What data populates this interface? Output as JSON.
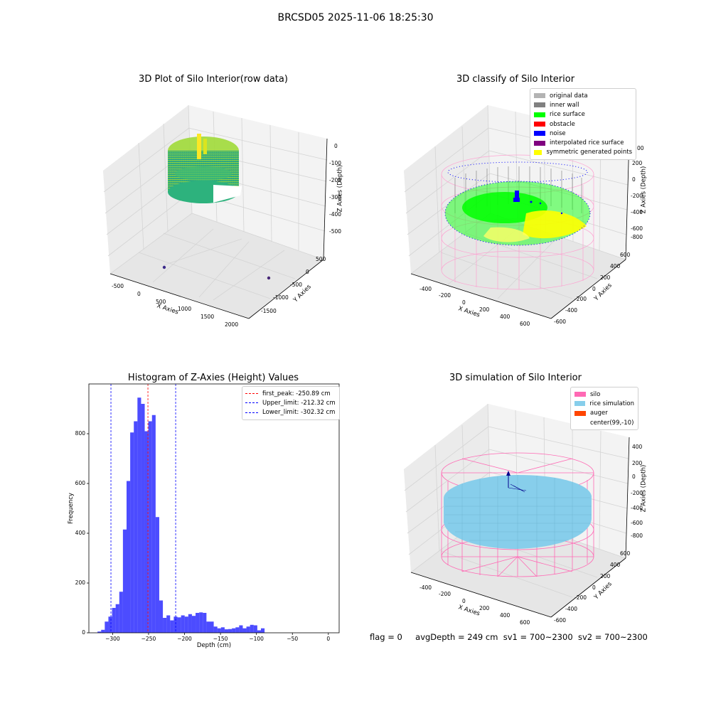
{
  "figure_title": "BRCSD05 2025-11-06 18:25:30",
  "panels": {
    "raw": {
      "title": "3D Plot of Silo Interior(row data)",
      "xlabel": "X Axies",
      "ylabel": "Y Axies",
      "zlabel": "Z Axies (Depth)",
      "xticks": [
        "-500",
        "0",
        "500",
        "1000",
        "1500",
        "2000"
      ],
      "yticks": [
        "500",
        "0",
        "-500",
        "-1000",
        "-1500"
      ],
      "zticks": [
        "0",
        "-100",
        "-200",
        "-300",
        "-400",
        "-500"
      ]
    },
    "classify": {
      "title": "3D classify of Silo Interior",
      "xlabel": "X Axies",
      "ylabel": "Y Axies",
      "zlabel": "Z Axies (Depth)",
      "xticks": [
        "-400",
        "-200",
        "0",
        "200",
        "400",
        "600"
      ],
      "yticks": [
        "600",
        "400",
        "200",
        "0",
        "-200",
        "-400",
        "-600"
      ],
      "zticks": [
        "200",
        "0",
        "-200",
        "-400",
        "-600",
        "-800"
      ],
      "ztick_top_partial": "00",
      "legend": [
        {
          "label": "original data",
          "color": "#b3b3b3"
        },
        {
          "label": "inner wall",
          "color": "#808080"
        },
        {
          "label": "rice surface",
          "color": "#00ff00"
        },
        {
          "label": "obstacle",
          "color": "#ff0000"
        },
        {
          "label": "noise",
          "color": "#0000ff"
        },
        {
          "label": "interpolated rice surface",
          "color": "#800080"
        },
        {
          "label": "symmetric generated points",
          "color": "#ffff00"
        }
      ]
    },
    "simulation": {
      "title": "3D simulation of Silo Interior",
      "xlabel": "X Axies",
      "ylabel": "Y Axies",
      "zlabel": "Z Axies (Depth)",
      "xticks": [
        "-400",
        "-200",
        "0",
        "200",
        "400",
        "600"
      ],
      "yticks": [
        "600",
        "400",
        "200",
        "0",
        "-200",
        "-400",
        "-600"
      ],
      "zticks": [
        "400",
        "200",
        "0",
        "-200",
        "-400",
        "-600",
        "-800"
      ],
      "legend": [
        {
          "label": "silo",
          "color": "#ff69b4"
        },
        {
          "label": "rice simulation",
          "color": "#87ceeb"
        },
        {
          "label": "auger",
          "color": "#ff4500"
        },
        {
          "label": "center(99,-10)",
          "color": ""
        }
      ]
    }
  },
  "status": {
    "flag": "flag = 0",
    "avg_depth": "avgDepth = 249 cm",
    "sv1": "sv1 = 700~2300",
    "sv2": "sv2 = 700~2300"
  },
  "chart_data": [
    {
      "type": "bar",
      "title": "Histogram of Z-Axies (Height) Values",
      "xlabel": "Depth (cm)",
      "ylabel": "Frequency",
      "xlim": [
        -333,
        15
      ],
      "ylim": [
        0,
        1000
      ],
      "xticks": [
        -300,
        -250,
        -200,
        -150,
        -100,
        -50,
        0
      ],
      "yticks": [
        0,
        200,
        400,
        600,
        800
      ],
      "bin_width": 5.05,
      "bin_start": -321,
      "values": [
        5,
        12,
        45,
        65,
        100,
        115,
        165,
        415,
        610,
        805,
        850,
        945,
        920,
        810,
        850,
        875,
        465,
        130,
        60,
        70,
        50,
        65,
        62,
        70,
        65,
        75,
        68,
        80,
        82,
        80,
        45,
        45,
        25,
        18,
        22,
        14,
        15,
        18,
        22,
        30,
        18,
        25,
        32,
        30,
        10,
        18
      ],
      "bar_color": "#0000ff",
      "bar_alpha": 0.7,
      "lines": [
        {
          "label": "first_peak: -250.89 cm",
          "x": -250.89,
          "color": "#ff0000"
        },
        {
          "label": "Upper_limit: -212.32 cm",
          "x": -212.32,
          "color": "#0000ff"
        },
        {
          "label": "Lower_limit: -302.32 cm",
          "x": -302.32,
          "color": "#0000ff"
        }
      ],
      "legend_position": "upper right"
    }
  ]
}
